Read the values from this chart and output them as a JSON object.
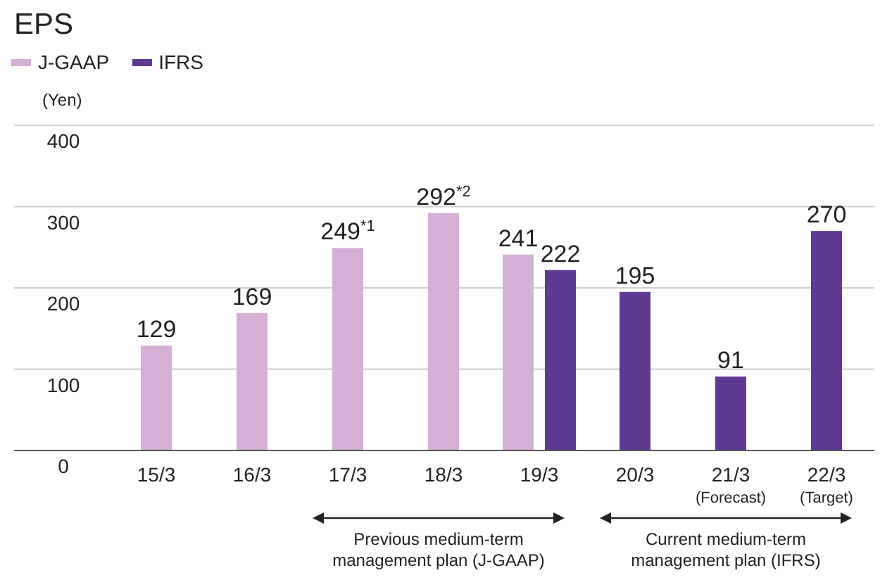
{
  "chart_data": {
    "type": "bar",
    "title": "EPS",
    "ylabel": "(Yen)",
    "categories": [
      "15/3",
      "16/3",
      "17/3",
      "18/3",
      "19/3",
      "20/3",
      "21/3\n(Forecast)",
      "22/3\n(Target)"
    ],
    "series": [
      {
        "name": "J-GAAP",
        "color": "#d4b0d4",
        "values": [
          129,
          169,
          249,
          292,
          241,
          null,
          null,
          null
        ],
        "value_labels": [
          "129",
          "169",
          "249$^{*1}$",
          "292$^{*2}$",
          "241",
          null,
          null,
          null
        ]
      },
      {
        "name": "IFRS",
        "color": "#5e3a93",
        "values": [
          null,
          null,
          null,
          null,
          222,
          195,
          91,
          270
        ],
        "value_labels": [
          null,
          null,
          null,
          null,
          "222",
          "195",
          "91",
          "270"
        ]
      }
    ],
    "ylim": [
      0,
      400
    ],
    "yticks": [
      0,
      100,
      200,
      300,
      400
    ],
    "grid": "y",
    "legend": "top left",
    "annotations": [
      "Previous medium-term management plan (J-GAAP)",
      "Current medium-term management plan (IFRS)"
    ]
  }
}
